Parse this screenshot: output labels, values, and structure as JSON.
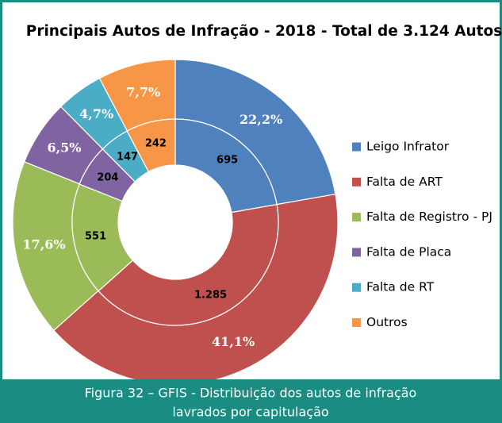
{
  "chart_data": {
    "type": "donut",
    "title": "Principais Autos de Infração - 2018 - Total de 3.124 Autos",
    "categories": [
      "Leigo Infrator",
      "Falta de ART",
      "Falta de Registro - PJ",
      "Falta de Placa",
      "Falta de RT",
      "Outros"
    ],
    "colors": [
      "#4f81bd",
      "#c0504d",
      "#9bbb59",
      "#8064a2",
      "#4bacc6",
      "#f79646"
    ],
    "values": [
      695,
      1285,
      551,
      204,
      147,
      242
    ],
    "value_labels": [
      "695",
      "1.285",
      "551",
      "204",
      "147",
      "242"
    ],
    "percentages": [
      22.2,
      41.1,
      17.6,
      6.5,
      4.7,
      7.7
    ],
    "percentage_labels": [
      "22,2%",
      "41,1%",
      "17,6%",
      "6,5%",
      "4,7%",
      "7,7%"
    ],
    "legend": "right"
  },
  "caption": [
    "Figura 32 – GFIS - Distribuição dos autos de infração",
    "lavrados por capitulação"
  ]
}
